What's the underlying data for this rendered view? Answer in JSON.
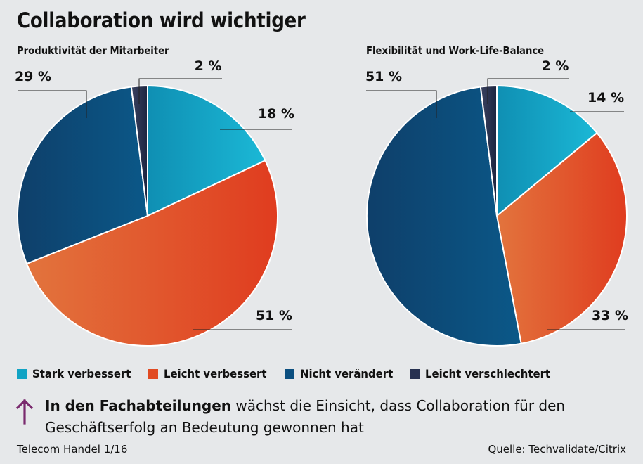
{
  "title": "Collaboration wird wichtiger",
  "colors": {
    "stark_verbessert": "#11a3c4",
    "leicht_verbessert": "#e14a22",
    "nicht_veraendert": "#0b4f80",
    "leicht_verschlechtert": "#273151",
    "arrow": "#7a2a6e"
  },
  "chart_data": [
    {
      "type": "pie",
      "title": "Produktivität der Mitarbeiter",
      "slices": [
        {
          "name": "Stark verbessert",
          "value": 18,
          "label": "18 %"
        },
        {
          "name": "Leicht verbessert",
          "value": 51,
          "label": "51 %"
        },
        {
          "name": "Nicht verändert",
          "value": 29,
          "label": "29 %"
        },
        {
          "name": "Leicht verschlechtert",
          "value": 2,
          "label": "2 %"
        }
      ]
    },
    {
      "type": "pie",
      "title": "Flexibilität und Work-Life-Balance",
      "slices": [
        {
          "name": "Stark verbessert",
          "value": 14,
          "label": "14 %"
        },
        {
          "name": "Leicht verbessert",
          "value": 33,
          "label": "33 %"
        },
        {
          "name": "Nicht verändert",
          "value": 51,
          "label": "51 %"
        },
        {
          "name": "Leicht verschlechtert",
          "value": 2,
          "label": "2 %"
        }
      ]
    }
  ],
  "legend": [
    {
      "label": "Stark verbessert",
      "color": "#11a3c4"
    },
    {
      "label": "Leicht verbessert",
      "color": "#e14a22"
    },
    {
      "label": "Nicht verändert",
      "color": "#0b4f80"
    },
    {
      "label": "Leicht verschlechtert",
      "color": "#273151"
    }
  ],
  "note": {
    "bold": "In den Fachabteilungen",
    "text": " wächst die Einsicht, dass Collaboration für den Geschäftserfolg an Bedeutung gewonnen hat"
  },
  "footer": {
    "left": "Telecom Handel 1/16",
    "right": "Quelle: Techvalidate/Citrix"
  }
}
